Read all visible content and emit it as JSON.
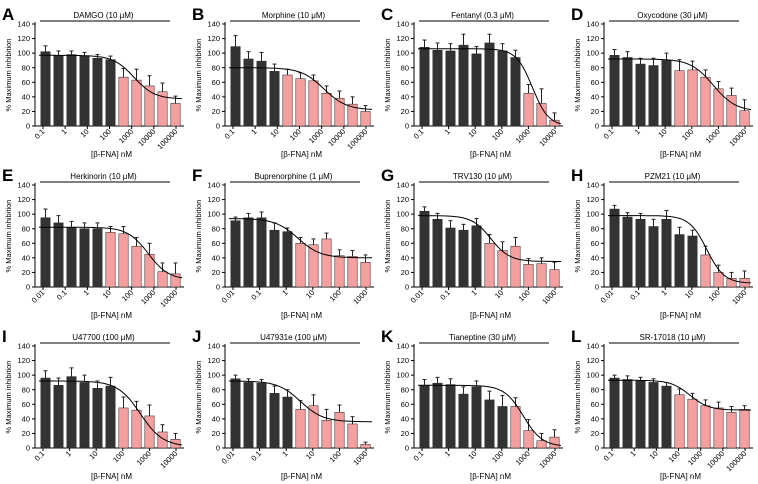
{
  "figure": {
    "ylabel": "% Maximum inhibition",
    "xlabel": "[β-FNA] nM",
    "yticks": [
      "0",
      "20",
      "40",
      "60",
      "80",
      "100",
      "120",
      "140"
    ],
    "colors": {
      "dark_bar": "#333333",
      "pink_bar": "#f4a0a0",
      "axis": "#000000"
    }
  },
  "chart_data": [
    {
      "type": "bar",
      "letter": "A",
      "title": "DAMGO (10 μM)",
      "ylim": [
        0,
        140
      ],
      "xticks": [
        "0.1",
        "1",
        "10",
        "100",
        "1000",
        "10000",
        "100000"
      ],
      "values": [
        102,
        97,
        98,
        96,
        93,
        91,
        67,
        63,
        55,
        47,
        31
      ],
      "errors": [
        8,
        6,
        5,
        5,
        5,
        5,
        12,
        15,
        14,
        12,
        10
      ],
      "colors": [
        "dark",
        "dark",
        "dark",
        "dark",
        "dark",
        "dark",
        "pink",
        "pink",
        "pink",
        "pink",
        "pink"
      ],
      "curve": {
        "top": 97,
        "bottom": 37,
        "midpoint_index": 6.8,
        "slope": 1.1
      }
    },
    {
      "type": "bar",
      "letter": "B",
      "title": "Morphine (10 μM)",
      "ylim": [
        0,
        140
      ],
      "xticks": [
        "0.1",
        "1",
        "10",
        "100",
        "1000",
        "10000",
        "100000"
      ],
      "values": [
        109,
        92,
        89,
        75,
        70,
        65,
        62,
        45,
        38,
        30,
        20
      ],
      "errors": [
        15,
        10,
        12,
        10,
        8,
        8,
        8,
        10,
        10,
        10,
        8
      ],
      "colors": [
        "dark",
        "dark",
        "dark",
        "dark",
        "pink",
        "pink",
        "pink",
        "pink",
        "pink",
        "pink",
        "pink"
      ],
      "curve": {
        "top": 80,
        "bottom": 22,
        "midpoint_index": 6.8,
        "slope": 1.0
      }
    },
    {
      "type": "bar",
      "letter": "C",
      "title": "Fentanyl (0.3 μM)",
      "ylim": [
        0,
        140
      ],
      "xticks": [
        "0.1",
        "1",
        "10",
        "100",
        "1000",
        "10000"
      ],
      "values": [
        108,
        104,
        103,
        111,
        99,
        114,
        103,
        94,
        45,
        31,
        8
      ],
      "errors": [
        10,
        10,
        10,
        15,
        10,
        12,
        10,
        10,
        12,
        20,
        10
      ],
      "colors": [
        "dark",
        "dark",
        "dark",
        "dark",
        "dark",
        "dark",
        "dark",
        "dark",
        "pink",
        "pink",
        "pink"
      ],
      "curve": {
        "top": 106,
        "bottom": 0,
        "midpoint_index": 8.3,
        "slope": 1.4
      }
    },
    {
      "type": "bar",
      "letter": "D",
      "title": "Oxycodone (30 μM)",
      "ylim": [
        0,
        140
      ],
      "xticks": [
        "0.1",
        "1",
        "10",
        "100",
        "1000",
        "10000"
      ],
      "values": [
        97,
        94,
        85,
        83,
        90,
        76,
        77,
        67,
        51,
        42,
        21
      ],
      "errors": [
        8,
        8,
        8,
        10,
        10,
        15,
        12,
        10,
        10,
        10,
        15
      ],
      "colors": [
        "dark",
        "dark",
        "dark",
        "dark",
        "dark",
        "pink",
        "pink",
        "pink",
        "pink",
        "pink",
        "pink"
      ],
      "curve": {
        "top": 92,
        "bottom": 20,
        "midpoint_index": 7.6,
        "slope": 1.0
      }
    },
    {
      "type": "bar",
      "letter": "E",
      "title": "Herkinorin (10 μM)",
      "ylim": [
        0,
        140
      ],
      "xticks": [
        "0.01",
        "0.1",
        "1",
        "10",
        "100",
        "1000",
        "10000"
      ],
      "values": [
        95,
        88,
        82,
        80,
        80,
        75,
        73,
        56,
        45,
        21,
        18
      ],
      "errors": [
        12,
        10,
        8,
        8,
        8,
        8,
        10,
        12,
        15,
        12,
        15
      ],
      "colors": [
        "dark",
        "dark",
        "dark",
        "dark",
        "dark",
        "pink",
        "pink",
        "pink",
        "pink",
        "pink",
        "pink"
      ],
      "curve": {
        "top": 82,
        "bottom": 10,
        "midpoint_index": 7.9,
        "slope": 1.1
      }
    },
    {
      "type": "bar",
      "letter": "F",
      "title": "Buprenorphine (1 μM)",
      "ylim": [
        0,
        140
      ],
      "xticks": [
        "0.01",
        "0.1",
        "1",
        "10",
        "100",
        "1000"
      ],
      "values": [
        91,
        95,
        95,
        78,
        76,
        60,
        58,
        66,
        43,
        42,
        34
      ],
      "errors": [
        5,
        6,
        8,
        10,
        5,
        8,
        8,
        8,
        8,
        8,
        10
      ],
      "colors": [
        "dark",
        "dark",
        "dark",
        "dark",
        "dark",
        "pink",
        "pink",
        "pink",
        "pink",
        "pink",
        "pink"
      ],
      "curve": {
        "top": 94,
        "bottom": 40,
        "midpoint_index": 4.8,
        "slope": 1.0
      }
    },
    {
      "type": "bar",
      "letter": "G",
      "title": "TRV130 (10 μM)",
      "ylim": [
        0,
        140
      ],
      "xticks": [
        "0.01",
        "0.1",
        "1",
        "10",
        "100",
        "1000"
      ],
      "values": [
        104,
        93,
        81,
        78,
        84,
        60,
        50,
        56,
        31,
        32,
        24
      ],
      "errors": [
        6,
        8,
        10,
        8,
        10,
        12,
        12,
        12,
        8,
        8,
        10
      ],
      "colors": [
        "dark",
        "dark",
        "dark",
        "dark",
        "dark",
        "pink",
        "pink",
        "pink",
        "pink",
        "pink",
        "pink"
      ],
      "curve": {
        "top": 98,
        "bottom": 35,
        "midpoint_index": 5.1,
        "slope": 1.2
      }
    },
    {
      "type": "bar",
      "letter": "H",
      "title": "PZM21 (10 μM)",
      "ylim": [
        0,
        140
      ],
      "xticks": [
        "0.01",
        "0.1",
        "1",
        "10",
        "100",
        "1000"
      ],
      "values": [
        107,
        96,
        93,
        83,
        93,
        72,
        70,
        44,
        20,
        12,
        12
      ],
      "errors": [
        5,
        6,
        8,
        10,
        12,
        10,
        8,
        12,
        10,
        8,
        10
      ],
      "colors": [
        "dark",
        "dark",
        "dark",
        "dark",
        "dark",
        "dark",
        "dark",
        "pink",
        "pink",
        "pink",
        "pink"
      ],
      "curve": {
        "top": 98,
        "bottom": 5,
        "midpoint_index": 7.1,
        "slope": 1.3
      }
    },
    {
      "type": "bar",
      "letter": "I",
      "title": "U47700 (100 μM)",
      "ylim": [
        0,
        140
      ],
      "xticks": [
        "0.1",
        "1",
        "10",
        "100",
        "1000",
        "10000"
      ],
      "values": [
        96,
        86,
        98,
        90,
        82,
        85,
        55,
        52,
        44,
        22,
        12
      ],
      "errors": [
        10,
        10,
        12,
        10,
        10,
        12,
        15,
        12,
        15,
        10,
        8
      ],
      "colors": [
        "dark",
        "dark",
        "dark",
        "dark",
        "dark",
        "dark",
        "pink",
        "pink",
        "pink",
        "pink",
        "pink"
      ],
      "curve": {
        "top": 92,
        "bottom": 2,
        "midpoint_index": 7.3,
        "slope": 1.0
      }
    },
    {
      "type": "bar",
      "letter": "J",
      "title": "U47931e (100 μM)",
      "ylim": [
        0,
        140
      ],
      "xticks": [
        "0.01",
        "0.1",
        "1",
        "10",
        "100",
        "1000"
      ],
      "values": [
        95,
        90,
        89,
        75,
        70,
        53,
        58,
        38,
        49,
        33,
        5
      ],
      "errors": [
        5,
        5,
        5,
        10,
        10,
        12,
        15,
        15,
        10,
        10,
        3
      ],
      "colors": [
        "dark",
        "dark",
        "dark",
        "dark",
        "dark",
        "pink",
        "pink",
        "pink",
        "pink",
        "pink",
        "pink"
      ],
      "curve": {
        "top": 92,
        "bottom": 36,
        "midpoint_index": 5.0,
        "slope": 1.0
      }
    },
    {
      "type": "bar",
      "letter": "K",
      "title": "Tianeptine (30 μM)",
      "ylim": [
        0,
        140
      ],
      "xticks": [
        "0.1",
        "1",
        "10",
        "100",
        "1000",
        "10000"
      ],
      "values": [
        86,
        89,
        87,
        74,
        84,
        66,
        57,
        57,
        24,
        10,
        15
      ],
      "errors": [
        8,
        8,
        8,
        10,
        8,
        12,
        15,
        12,
        15,
        10,
        10
      ],
      "colors": [
        "dark",
        "dark",
        "dark",
        "dark",
        "dark",
        "dark",
        "dark",
        "pink",
        "pink",
        "pink",
        "pink"
      ],
      "curve": {
        "top": 86,
        "bottom": 2,
        "midpoint_index": 7.6,
        "slope": 1.2
      }
    },
    {
      "type": "bar",
      "letter": "L",
      "title": "SR-17018 (10 μM)",
      "ylim": [
        0,
        140
      ],
      "xticks": [
        "0.1",
        "1",
        "10",
        "100",
        "1000",
        "10000",
        "100000"
      ],
      "values": [
        96,
        94,
        92,
        90,
        85,
        73,
        67,
        58,
        55,
        49,
        53
      ],
      "errors": [
        4,
        5,
        5,
        5,
        5,
        8,
        8,
        8,
        8,
        8,
        5
      ],
      "colors": [
        "dark",
        "dark",
        "dark",
        "dark",
        "dark",
        "pink",
        "pink",
        "pink",
        "pink",
        "pink",
        "pink"
      ],
      "curve": {
        "top": 93,
        "bottom": 52,
        "midpoint_index": 5.8,
        "slope": 1.2
      }
    }
  ]
}
